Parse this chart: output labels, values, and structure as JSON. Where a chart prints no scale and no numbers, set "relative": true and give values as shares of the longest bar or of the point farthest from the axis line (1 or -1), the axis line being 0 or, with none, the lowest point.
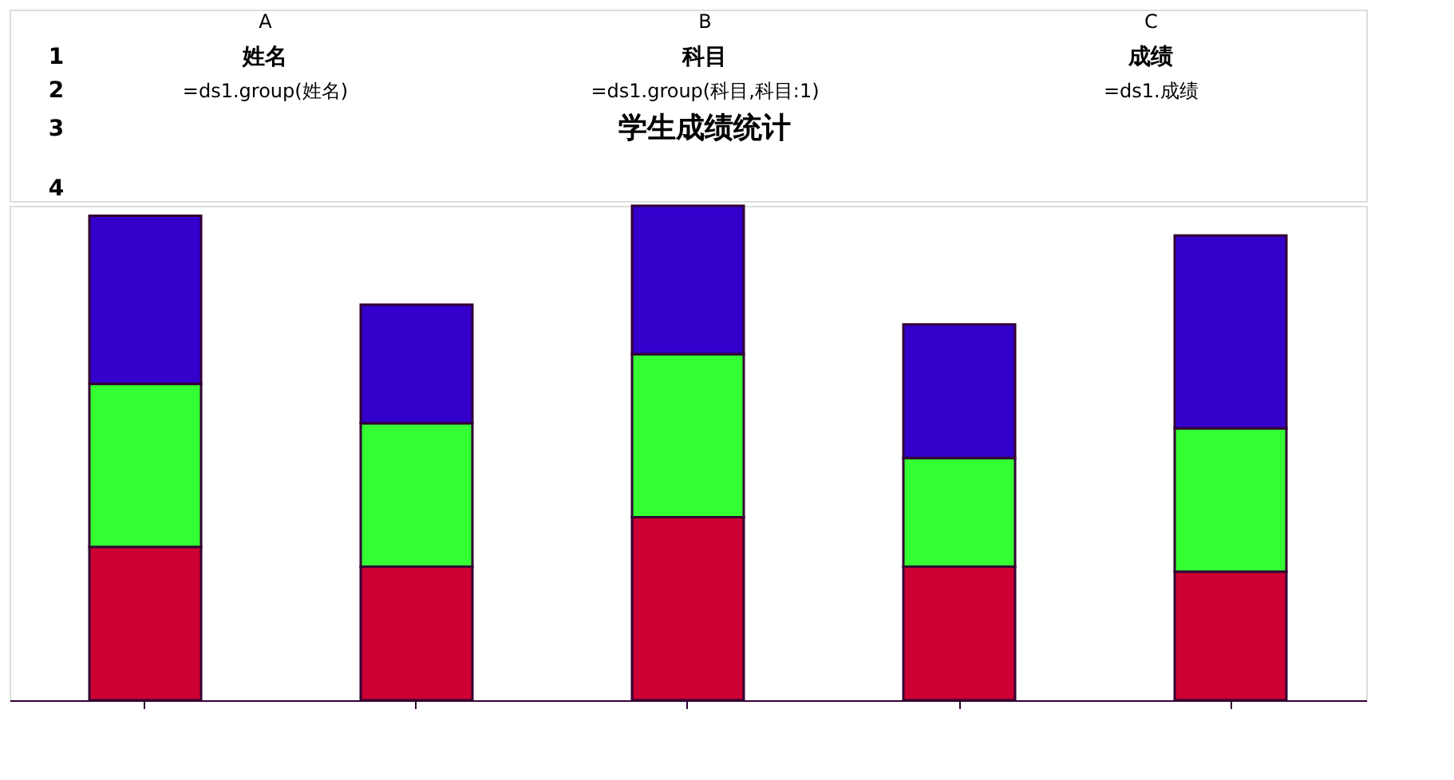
{
  "chart_data": {
    "type": "bar",
    "title": "学生成绩统计",
    "stacked": true,
    "relative": true,
    "legend": false,
    "grid": false,
    "categories": [
      null,
      null,
      null,
      null,
      null
    ],
    "series": [
      {
        "color": "#cc0033",
        "values": [
          0.31,
          0.27,
          0.37,
          0.27,
          0.26
        ]
      },
      {
        "color": "#33ff33",
        "values": [
          0.33,
          0.29,
          0.33,
          0.22,
          0.29
        ]
      },
      {
        "color": "#3300cc",
        "values": [
          0.34,
          0.24,
          0.3,
          0.27,
          0.39
        ]
      }
    ],
    "annotations": [
      "A",
      "B",
      "C",
      "1",
      "2",
      "3",
      "4",
      "姓名",
      "科目",
      "成绩",
      "=ds1.group(姓名)",
      "=ds1.group(科目,科目:1)",
      "=ds1.成绩"
    ]
  }
}
